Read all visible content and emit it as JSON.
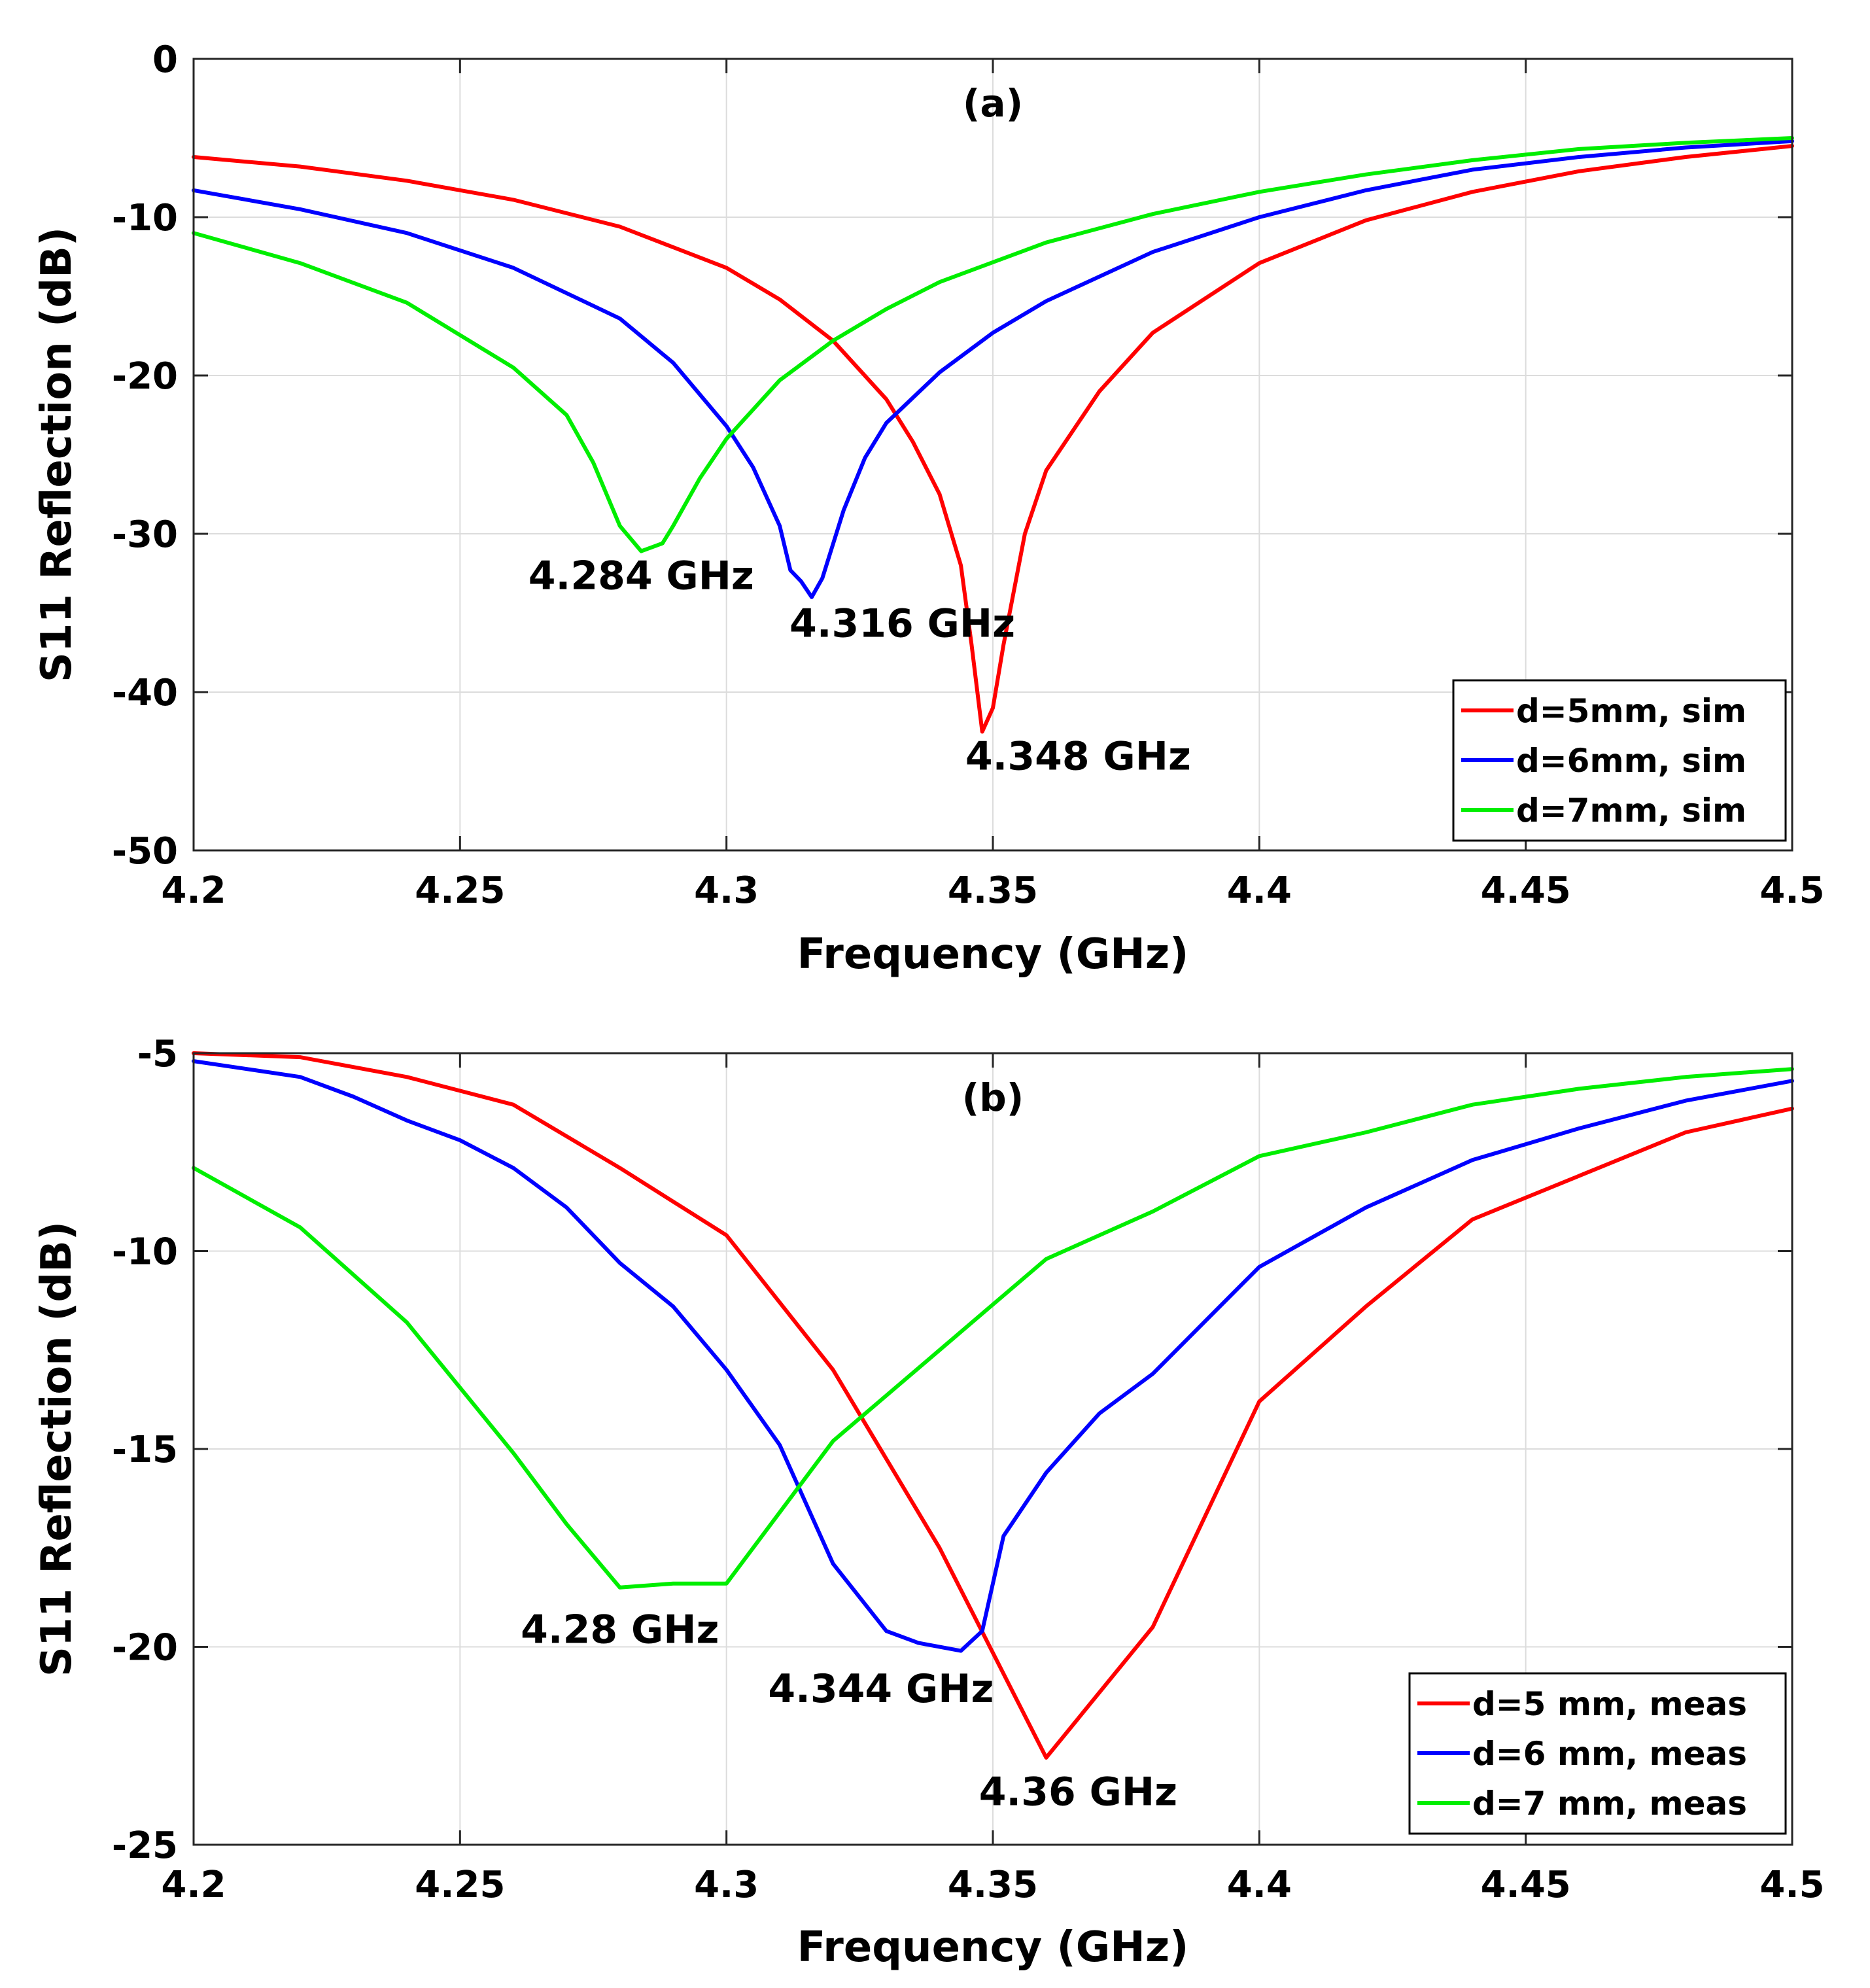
{
  "chart_data": [
    {
      "type": "line",
      "panel_label": "(a)",
      "xlabel": "Frequency (GHz)",
      "ylabel": "S11 Reflection (dB)",
      "xlim": [
        4.2,
        4.5
      ],
      "ylim": [
        -50,
        0
      ],
      "xticks": [
        4.2,
        4.25,
        4.3,
        4.35,
        4.4,
        4.45,
        4.5
      ],
      "xtick_labels": [
        "4.2",
        "4.25",
        "4.3",
        "4.35",
        "4.4",
        "4.45",
        "4.5"
      ],
      "yticks": [
        0,
        -10,
        -20,
        -30,
        -40,
        -50
      ],
      "ytick_labels": [
        "0",
        "-10",
        "-20",
        "-30",
        "-40",
        "-50"
      ],
      "grid": true,
      "legend_position": "bottom-right",
      "series": [
        {
          "name": "d=5mm, sim",
          "color": "#ff0000",
          "x": [
            4.2,
            4.22,
            4.24,
            4.26,
            4.28,
            4.3,
            4.31,
            4.32,
            4.33,
            4.335,
            4.34,
            4.344,
            4.346,
            4.348,
            4.35,
            4.352,
            4.356,
            4.36,
            4.37,
            4.38,
            4.4,
            4.42,
            4.44,
            4.46,
            4.48,
            4.5
          ],
          "y": [
            -6.2,
            -6.8,
            -7.7,
            -8.9,
            -10.6,
            -13.2,
            -15.2,
            -17.8,
            -21.5,
            -24.2,
            -27.5,
            -32.0,
            -37.0,
            -42.5,
            -41.0,
            -37.0,
            -30.0,
            -26.0,
            -21.0,
            -17.3,
            -12.9,
            -10.2,
            -8.4,
            -7.1,
            -6.2,
            -5.5
          ]
        },
        {
          "name": "d=6mm, sim",
          "color": "#0000ff",
          "x": [
            4.2,
            4.22,
            4.24,
            4.26,
            4.28,
            4.29,
            4.3,
            4.305,
            4.31,
            4.312,
            4.314,
            4.316,
            4.318,
            4.322,
            4.326,
            4.33,
            4.34,
            4.35,
            4.36,
            4.38,
            4.4,
            4.42,
            4.44,
            4.46,
            4.48,
            4.5
          ],
          "y": [
            -8.3,
            -9.5,
            -11.0,
            -13.2,
            -16.4,
            -19.2,
            -23.2,
            -25.8,
            -29.5,
            -32.3,
            -33.0,
            -34.0,
            -32.8,
            -28.5,
            -25.2,
            -23.0,
            -19.8,
            -17.3,
            -15.3,
            -12.2,
            -10.0,
            -8.3,
            -7.0,
            -6.2,
            -5.6,
            -5.2
          ]
        },
        {
          "name": "d=7mm, sim",
          "color": "#00ee00",
          "x": [
            4.2,
            4.22,
            4.24,
            4.26,
            4.27,
            4.275,
            4.28,
            4.284,
            4.288,
            4.29,
            4.295,
            4.3,
            4.31,
            4.32,
            4.33,
            4.34,
            4.36,
            4.38,
            4.4,
            4.42,
            4.44,
            4.46,
            4.48,
            4.5
          ],
          "y": [
            -11.0,
            -12.9,
            -15.4,
            -19.5,
            -22.5,
            -25.5,
            -29.5,
            -31.1,
            -30.6,
            -29.5,
            -26.5,
            -24.0,
            -20.3,
            -17.8,
            -15.8,
            -14.1,
            -11.6,
            -9.8,
            -8.4,
            -7.3,
            -6.4,
            -5.7,
            -5.3,
            -5.0
          ]
        }
      ],
      "annotations": [
        {
          "text": "4.284 GHz",
          "x": 4.284,
          "y": -33.5
        },
        {
          "text": "4.316 GHz",
          "x": 4.333,
          "y": -36.5
        },
        {
          "text": "4.348 GHz",
          "x": 4.366,
          "y": -44.9
        }
      ]
    },
    {
      "type": "line",
      "panel_label": "(b)",
      "xlabel": "Frequency (GHz)",
      "ylabel": "S11 Reflection (dB)",
      "xlim": [
        4.2,
        4.5
      ],
      "ylim": [
        -25,
        -5
      ],
      "xticks": [
        4.2,
        4.25,
        4.3,
        4.35,
        4.4,
        4.45,
        4.5
      ],
      "xtick_labels": [
        "4.2",
        "4.25",
        "4.3",
        "4.35",
        "4.4",
        "4.45",
        "4.5"
      ],
      "yticks": [
        -5,
        -10,
        -15,
        -20,
        -25
      ],
      "ytick_labels": [
        "-5",
        "-10",
        "-15",
        "-20",
        "-25"
      ],
      "grid": true,
      "legend_position": "bottom-right",
      "series": [
        {
          "name": "d=5 mm, meas",
          "color": "#ff0000",
          "x": [
            4.2,
            4.22,
            4.24,
            4.26,
            4.28,
            4.3,
            4.32,
            4.34,
            4.36,
            4.38,
            4.4,
            4.42,
            4.44,
            4.46,
            4.48,
            4.5
          ],
          "y": [
            -5.0,
            -5.1,
            -5.6,
            -6.3,
            -7.9,
            -9.6,
            -13.0,
            -17.5,
            -22.8,
            -19.5,
            -13.8,
            -11.4,
            -9.2,
            -8.1,
            -7.0,
            -6.4
          ]
        },
        {
          "name": "d=6 mm, meas",
          "color": "#0000ff",
          "x": [
            4.2,
            4.21,
            4.22,
            4.23,
            4.24,
            4.25,
            4.26,
            4.27,
            4.28,
            4.29,
            4.3,
            4.31,
            4.32,
            4.33,
            4.336,
            4.344,
            4.348,
            4.352,
            4.36,
            4.37,
            4.38,
            4.4,
            4.42,
            4.44,
            4.46,
            4.48,
            4.5
          ],
          "y": [
            -5.2,
            -5.4,
            -5.6,
            -6.1,
            -6.7,
            -7.2,
            -7.9,
            -8.9,
            -10.3,
            -11.4,
            -13.0,
            -14.9,
            -17.9,
            -19.6,
            -19.9,
            -20.1,
            -19.6,
            -17.2,
            -15.6,
            -14.1,
            -13.1,
            -10.4,
            -8.9,
            -7.7,
            -6.9,
            -6.2,
            -5.7
          ]
        },
        {
          "name": "d=7 mm, meas",
          "color": "#00ee00",
          "x": [
            4.2,
            4.22,
            4.24,
            4.26,
            4.27,
            4.28,
            4.29,
            4.3,
            4.32,
            4.34,
            4.36,
            4.38,
            4.4,
            4.42,
            4.44,
            4.46,
            4.48,
            4.5
          ],
          "y": [
            -7.9,
            -9.4,
            -11.8,
            -15.1,
            -16.9,
            -18.5,
            -18.4,
            -18.4,
            -14.8,
            -12.5,
            -10.2,
            -9.0,
            -7.6,
            -7.0,
            -6.3,
            -5.9,
            -5.6,
            -5.4
          ]
        }
      ],
      "annotations": [
        {
          "text": "4.28 GHz",
          "x": 4.28,
          "y": -19.9
        },
        {
          "text": "4.344 GHz",
          "x": 4.329,
          "y": -21.4
        },
        {
          "text": "4.36 GHz",
          "x": 4.366,
          "y": -24.0
        }
      ]
    }
  ]
}
